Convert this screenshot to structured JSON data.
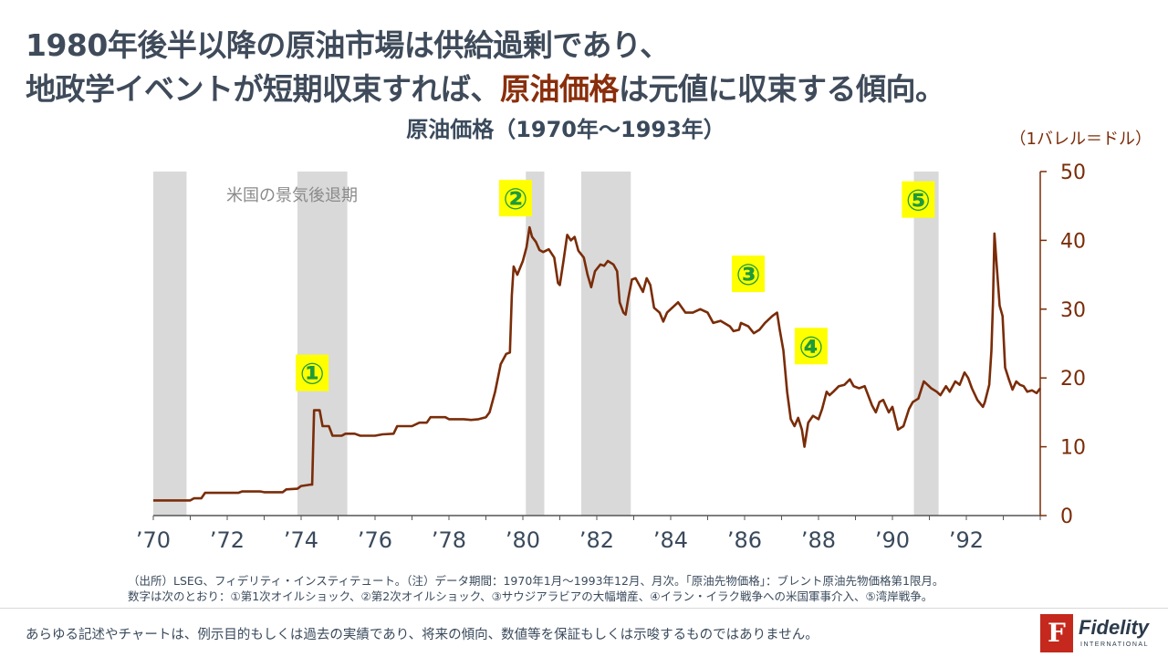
{
  "headline": {
    "line1": "1980年後半以降の原油市場は供給過剰であり、",
    "line2_pre": "地政学イベントが短期収束すれば、",
    "line2_highlight": "原油価格",
    "line2_post": "は元値に収束する傾向。"
  },
  "colors": {
    "line": "#7a2c08",
    "recession": "#d9d9d9",
    "axis": "#7a2c08",
    "marker_bg": "#ffff00",
    "marker_fg": "#1f9a3a"
  },
  "chart_data": {
    "type": "line",
    "title": "原油価格（1970年～1993年）",
    "unit_label": "（1バレル＝ドル）",
    "recession_label": "米国の景気後退期",
    "x_range": [
      1970.0,
      1994.0
    ],
    "ylim": [
      0,
      50
    ],
    "y_ticks": [
      0,
      10,
      20,
      30,
      40,
      50
    ],
    "x_ticks": [
      {
        "year": 1970,
        "label": "’70"
      },
      {
        "year": 1972,
        "label": "’72"
      },
      {
        "year": 1974,
        "label": "’74"
      },
      {
        "year": 1976,
        "label": "’76"
      },
      {
        "year": 1978,
        "label": "’78"
      },
      {
        "year": 1980,
        "label": "’80"
      },
      {
        "year": 1982,
        "label": "’82"
      },
      {
        "year": 1984,
        "label": "’84"
      },
      {
        "year": 1986,
        "label": "’86"
      },
      {
        "year": 1988,
        "label": "’88"
      },
      {
        "year": 1990,
        "label": "’90"
      },
      {
        "year": 1992,
        "label": "’92"
      }
    ],
    "recessions": [
      [
        1970.0,
        1970.9
      ],
      [
        1973.9,
        1975.25
      ],
      [
        1980.08,
        1980.58
      ],
      [
        1981.58,
        1982.92
      ],
      [
        1990.58,
        1991.25
      ]
    ],
    "events": [
      {
        "label": "①",
        "year": 1974.3,
        "value": 20.6
      },
      {
        "label": "②",
        "year": 1979.8,
        "value": 46.0
      },
      {
        "label": "③",
        "year": 1986.1,
        "value": 35.0
      },
      {
        "label": "④",
        "year": 1987.8,
        "value": 24.5
      },
      {
        "label": "⑤",
        "year": 1990.7,
        "value": 45.8
      }
    ],
    "series": [
      {
        "name": "原油先物価格",
        "points": [
          [
            1970.0,
            2.2
          ],
          [
            1970.5,
            2.2
          ],
          [
            1971.0,
            2.2
          ],
          [
            1971.1,
            2.5
          ],
          [
            1971.3,
            2.5
          ],
          [
            1971.4,
            3.3
          ],
          [
            1972.3,
            3.3
          ],
          [
            1972.4,
            3.5
          ],
          [
            1972.9,
            3.5
          ],
          [
            1973.0,
            3.4
          ],
          [
            1973.5,
            3.4
          ],
          [
            1973.6,
            3.8
          ],
          [
            1973.9,
            3.9
          ],
          [
            1974.0,
            4.3
          ],
          [
            1974.25,
            4.5
          ],
          [
            1974.3,
            4.5
          ],
          [
            1974.35,
            15.3
          ],
          [
            1974.5,
            15.3
          ],
          [
            1974.58,
            13.0
          ],
          [
            1974.75,
            13.0
          ],
          [
            1974.85,
            11.6
          ],
          [
            1975.1,
            11.6
          ],
          [
            1975.2,
            11.9
          ],
          [
            1975.45,
            11.9
          ],
          [
            1975.6,
            11.6
          ],
          [
            1976.0,
            11.6
          ],
          [
            1976.2,
            11.8
          ],
          [
            1976.5,
            11.9
          ],
          [
            1976.6,
            13.0
          ],
          [
            1977.0,
            13.0
          ],
          [
            1977.2,
            13.5
          ],
          [
            1977.4,
            13.5
          ],
          [
            1977.5,
            14.3
          ],
          [
            1977.9,
            14.3
          ],
          [
            1978.0,
            14.0
          ],
          [
            1978.4,
            14.0
          ],
          [
            1978.6,
            13.9
          ],
          [
            1978.8,
            14.0
          ],
          [
            1979.0,
            14.3
          ],
          [
            1979.1,
            15.0
          ],
          [
            1979.25,
            18.0
          ],
          [
            1979.4,
            22.0
          ],
          [
            1979.55,
            23.5
          ],
          [
            1979.65,
            23.7
          ],
          [
            1979.7,
            32.0
          ],
          [
            1979.75,
            36.2
          ],
          [
            1979.85,
            35.0
          ],
          [
            1980.0,
            37.0
          ],
          [
            1980.1,
            39.0
          ],
          [
            1980.18,
            41.9
          ],
          [
            1980.25,
            40.5
          ],
          [
            1980.35,
            39.8
          ],
          [
            1980.45,
            38.6
          ],
          [
            1980.55,
            38.3
          ],
          [
            1980.7,
            38.7
          ],
          [
            1980.85,
            37.5
          ],
          [
            1980.95,
            33.8
          ],
          [
            1981.0,
            33.5
          ],
          [
            1981.1,
            37.0
          ],
          [
            1981.2,
            40.8
          ],
          [
            1981.3,
            40.0
          ],
          [
            1981.4,
            40.5
          ],
          [
            1981.5,
            38.5
          ],
          [
            1981.65,
            37.5
          ],
          [
            1981.75,
            35.0
          ],
          [
            1981.85,
            33.2
          ],
          [
            1981.95,
            35.5
          ],
          [
            1982.1,
            36.5
          ],
          [
            1982.2,
            36.3
          ],
          [
            1982.3,
            37.0
          ],
          [
            1982.45,
            36.5
          ],
          [
            1982.55,
            35.5
          ],
          [
            1982.62,
            31.0
          ],
          [
            1982.72,
            29.5
          ],
          [
            1982.78,
            29.2
          ],
          [
            1982.85,
            31.5
          ],
          [
            1982.95,
            34.3
          ],
          [
            1983.05,
            34.5
          ],
          [
            1983.15,
            33.5
          ],
          [
            1983.25,
            32.5
          ],
          [
            1983.35,
            34.5
          ],
          [
            1983.45,
            33.5
          ],
          [
            1983.55,
            30.2
          ],
          [
            1983.7,
            29.5
          ],
          [
            1983.8,
            28.2
          ],
          [
            1983.9,
            29.5
          ],
          [
            1984.0,
            30.0
          ],
          [
            1984.2,
            31.0
          ],
          [
            1984.4,
            29.5
          ],
          [
            1984.6,
            29.5
          ],
          [
            1984.8,
            30.0
          ],
          [
            1985.0,
            29.5
          ],
          [
            1985.15,
            28.0
          ],
          [
            1985.35,
            28.3
          ],
          [
            1985.6,
            27.5
          ],
          [
            1985.7,
            26.8
          ],
          [
            1985.85,
            27.0
          ],
          [
            1985.9,
            28.0
          ],
          [
            1986.1,
            27.5
          ],
          [
            1986.25,
            26.5
          ],
          [
            1986.4,
            27.0
          ],
          [
            1986.55,
            28.0
          ],
          [
            1986.75,
            29.0
          ],
          [
            1986.88,
            29.5
          ],
          [
            1986.95,
            27.0
          ],
          [
            1987.05,
            24.0
          ],
          [
            1987.15,
            18.0
          ],
          [
            1987.25,
            14.0
          ],
          [
            1987.35,
            13.0
          ],
          [
            1987.45,
            14.2
          ],
          [
            1987.55,
            12.5
          ],
          [
            1987.62,
            10.0
          ],
          [
            1987.72,
            13.5
          ],
          [
            1987.85,
            14.5
          ],
          [
            1988.0,
            14.0
          ],
          [
            1988.1,
            15.5
          ],
          [
            1988.22,
            18.0
          ],
          [
            1988.3,
            17.5
          ],
          [
            1988.4,
            18.0
          ],
          [
            1988.55,
            18.8
          ],
          [
            1988.7,
            19.0
          ],
          [
            1988.85,
            19.8
          ],
          [
            1988.95,
            18.8
          ],
          [
            1989.1,
            18.5
          ],
          [
            1989.25,
            18.8
          ],
          [
            1989.45,
            16.0
          ],
          [
            1989.55,
            15.0
          ],
          [
            1989.65,
            16.5
          ],
          [
            1989.75,
            16.8
          ],
          [
            1989.9,
            15.0
          ],
          [
            1990.0,
            15.8
          ],
          [
            1990.15,
            12.5
          ],
          [
            1990.3,
            13.0
          ],
          [
            1990.45,
            15.5
          ],
          [
            1990.55,
            16.5
          ],
          [
            1990.7,
            17.0
          ],
          [
            1990.85,
            19.5
          ],
          [
            1990.95,
            19.0
          ],
          [
            1991.05,
            18.5
          ],
          [
            1991.2,
            18.0
          ],
          [
            1991.3,
            17.5
          ],
          [
            1991.45,
            18.8
          ],
          [
            1991.55,
            18.0
          ],
          [
            1991.7,
            19.5
          ],
          [
            1991.82,
            19.0
          ],
          [
            1991.95,
            20.8
          ],
          [
            1992.05,
            20.0
          ],
          [
            1992.15,
            18.5
          ],
          [
            1992.3,
            16.8
          ],
          [
            1992.45,
            15.8
          ],
          [
            1992.5,
            16.5
          ],
          [
            1992.62,
            19.0
          ],
          [
            1992.68,
            24.0
          ],
          [
            1992.72,
            31.0
          ],
          [
            1992.76,
            41.0
          ],
          [
            1992.82,
            36.5
          ],
          [
            1992.9,
            30.5
          ],
          [
            1992.98,
            29.0
          ],
          [
            1993.05,
            21.5
          ],
          [
            1993.15,
            19.8
          ],
          [
            1993.25,
            18.3
          ],
          [
            1993.35,
            19.5
          ],
          [
            1993.45,
            19.0
          ],
          [
            1993.55,
            18.8
          ],
          [
            1993.65,
            18.0
          ],
          [
            1993.78,
            18.2
          ],
          [
            1993.9,
            17.8
          ],
          [
            1994.0,
            18.5
          ]
        ]
      }
    ]
  },
  "footer": {
    "source_line1": "（出所）LSEG、フィデリティ・インスティテュート。（注）データ期間：1970年1月～1993年12月、月次。「原油先物価格」：ブレント原油先物価格第1限月。",
    "source_line2": "数字は次のとおり：①第1次オイルショック、②第2次オイルショック、③サウジアラビアの大幅増産、④イラン・イラク戦争への米国軍事介入、⑤湾岸戦争。",
    "disclaimer": "あらゆる記述やチャートは、例示目的もしくは過去の実績であり、将来の傾向、数値等を保証もしくは示唆するものではありません。"
  },
  "logo": {
    "mark": "F",
    "word": "Fidelity",
    "sub": "INTERNATIONAL"
  }
}
